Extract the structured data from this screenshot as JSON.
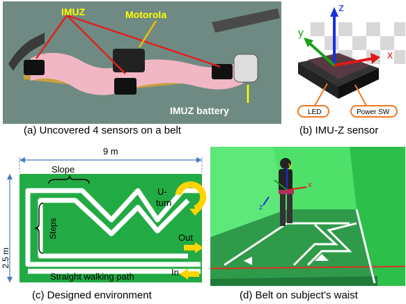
{
  "panel_a": {
    "labels": {
      "imuz": "IMUZ",
      "motorola": "Motorola",
      "battery": "IMUZ battery"
    },
    "caption": "(a) Uncovered 4 sensors on a belt",
    "colors": {
      "label_yellow": "#ffff00",
      "arrow_red": "#e02020",
      "felt": "#f2b7c4",
      "floor": "#6f8a82"
    }
  },
  "panel_b": {
    "axes": {
      "x": "x",
      "y": "y",
      "z": "z"
    },
    "callouts": {
      "led": "LED",
      "power": "Power SW"
    },
    "caption": "(b) IMU-Z sensor",
    "colors": {
      "x_axis": "#e01818",
      "y_axis": "#18a018",
      "z_axis": "#1830e0",
      "callout": "#f07820"
    }
  },
  "panel_c": {
    "dim_width": "9 m",
    "dim_height": "2.5 m",
    "labels": {
      "slope": "Slope",
      "steps": "Steps",
      "uturn_top": "U-",
      "uturn_bottom": "turn",
      "out": "Out",
      "in": "In",
      "straight": "Straight walking path"
    },
    "caption": "(c) Designed environment",
    "colors": {
      "field": "#22aa44",
      "path": "#ffffff",
      "arrow": "#ffd400",
      "dimension": "#4a78c0"
    }
  },
  "panel_d": {
    "axes": {
      "x": "x",
      "y": "y",
      "z": "z"
    },
    "caption": "(d) Belt on subject’s waist",
    "colors": {
      "screen": "#4fe06a",
      "floor": "#2f9b4a",
      "line": "#ffffff"
    }
  }
}
